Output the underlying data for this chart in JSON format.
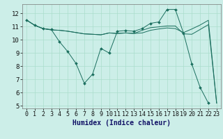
{
  "xlabel": "Humidex (Indice chaleur)",
  "bg_color": "#cceee8",
  "grid_color": "#aaddcc",
  "line_color": "#1a6e5e",
  "xlim": [
    -0.5,
    23.5
  ],
  "ylim": [
    4.8,
    12.7
  ],
  "yticks": [
    5,
    6,
    7,
    8,
    9,
    10,
    11,
    12
  ],
  "xticks": [
    0,
    1,
    2,
    3,
    4,
    5,
    6,
    7,
    8,
    9,
    10,
    11,
    12,
    13,
    14,
    15,
    16,
    17,
    18,
    19,
    20,
    21,
    22,
    23
  ],
  "line1_x": [
    0,
    1,
    2,
    3,
    4,
    5,
    6,
    7,
    8,
    9,
    10,
    11,
    12,
    13,
    14,
    15,
    16,
    17,
    18,
    19,
    20,
    21,
    22,
    23
  ],
  "line1_y": [
    11.5,
    11.1,
    10.85,
    10.75,
    10.72,
    10.65,
    10.55,
    10.45,
    10.42,
    10.38,
    10.52,
    10.48,
    10.52,
    10.48,
    10.52,
    10.72,
    10.82,
    10.9,
    10.85,
    10.55,
    10.82,
    11.12,
    11.48,
    5.2
  ],
  "line2_x": [
    0,
    1,
    2,
    3,
    4,
    5,
    6,
    7,
    8,
    9,
    10,
    11,
    12,
    13,
    14,
    15,
    16,
    17,
    18,
    19,
    20,
    21,
    22
  ],
  "line2_y": [
    11.5,
    11.1,
    10.85,
    10.78,
    9.85,
    9.1,
    8.2,
    6.7,
    7.4,
    9.35,
    9.0,
    10.65,
    10.7,
    10.65,
    10.85,
    11.25,
    11.35,
    12.3,
    12.3,
    10.5,
    8.15,
    6.4,
    5.2
  ],
  "line3_x": [
    0,
    1,
    2,
    3,
    4,
    5,
    6,
    7,
    8,
    9,
    10,
    11,
    12,
    13,
    14,
    15,
    16,
    17,
    18,
    19,
    20,
    21,
    22,
    23
  ],
  "line3_y": [
    11.5,
    11.1,
    10.85,
    10.75,
    10.72,
    10.65,
    10.55,
    10.45,
    10.42,
    10.38,
    10.52,
    10.48,
    10.52,
    10.48,
    10.72,
    10.92,
    10.98,
    11.05,
    11.05,
    10.45,
    10.42,
    10.78,
    11.15,
    5.2
  ],
  "xlabel_fontsize": 7,
  "tick_fontsize": 6
}
